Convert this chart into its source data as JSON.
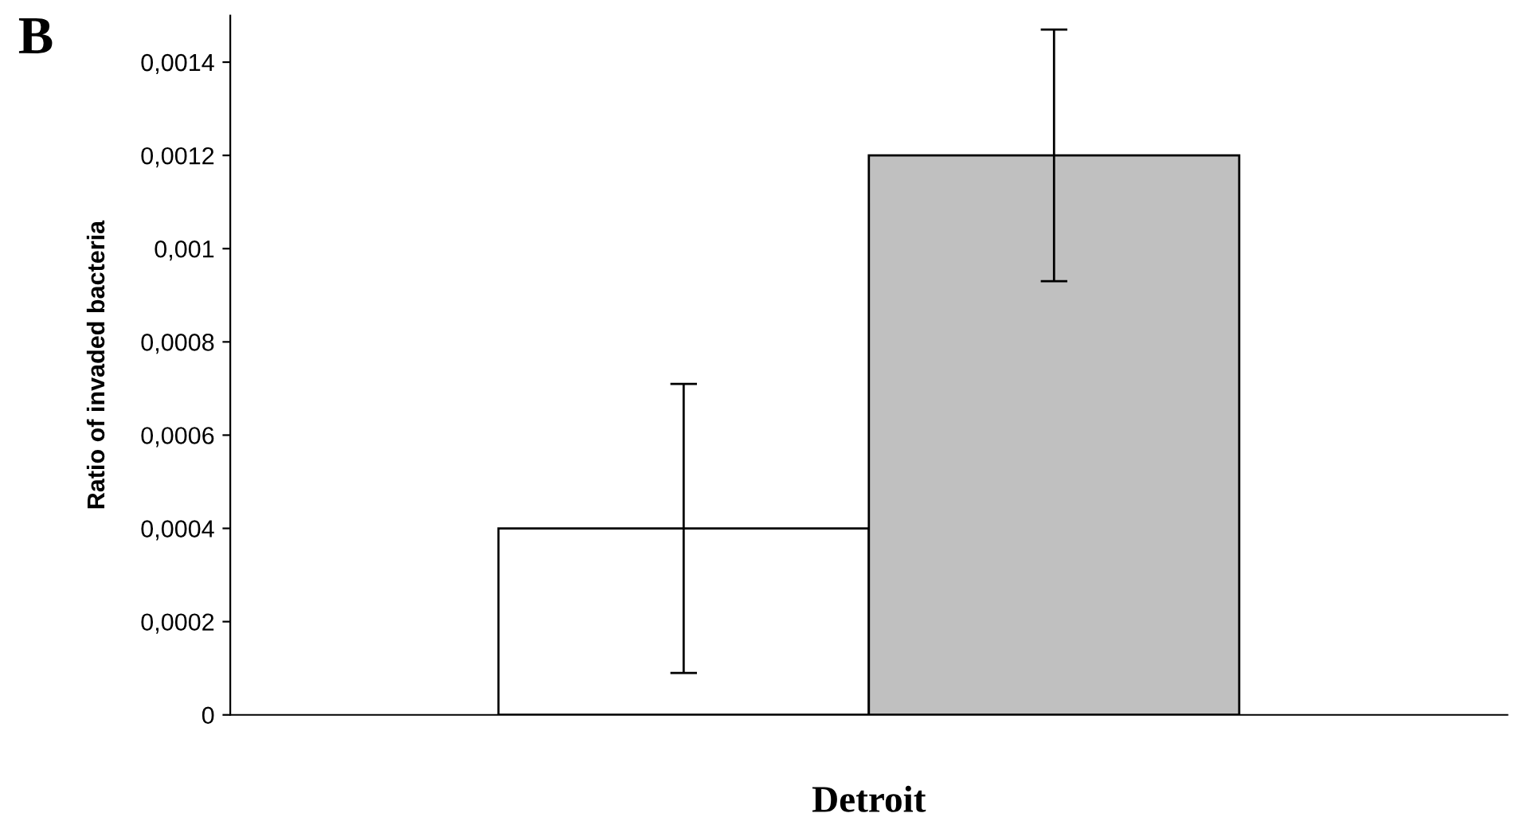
{
  "chart_data": {
    "type": "bar",
    "categories": [
      "Detroit"
    ],
    "series": [
      {
        "color": "#ffffff",
        "values": [
          0.0004
        ],
        "errors": [
          0.00031
        ]
      },
      {
        "color": "#c0c0c0",
        "values": [
          0.0012
        ],
        "errors": [
          0.00027
        ]
      }
    ],
    "ylabel": "Ratio of invaded bacteria",
    "ylim": [
      0,
      0.0015
    ],
    "yticks": [
      0,
      {
        "value": 0.0002,
        "label": "0,0002"
      },
      {
        "value": 0.0004,
        "label": "0,0004"
      },
      {
        "value": 0.0006,
        "label": "0,0006"
      },
      {
        "value": 0.0008,
        "label": "0,0008"
      },
      {
        "value": 0.001,
        "label": "0,001"
      },
      {
        "value": 0.0012,
        "label": "0,0012"
      },
      {
        "value": 0.0014,
        "label": "0,0014"
      }
    ],
    "annotations": [
      "B"
    ],
    "grid": false,
    "legend": false
  }
}
